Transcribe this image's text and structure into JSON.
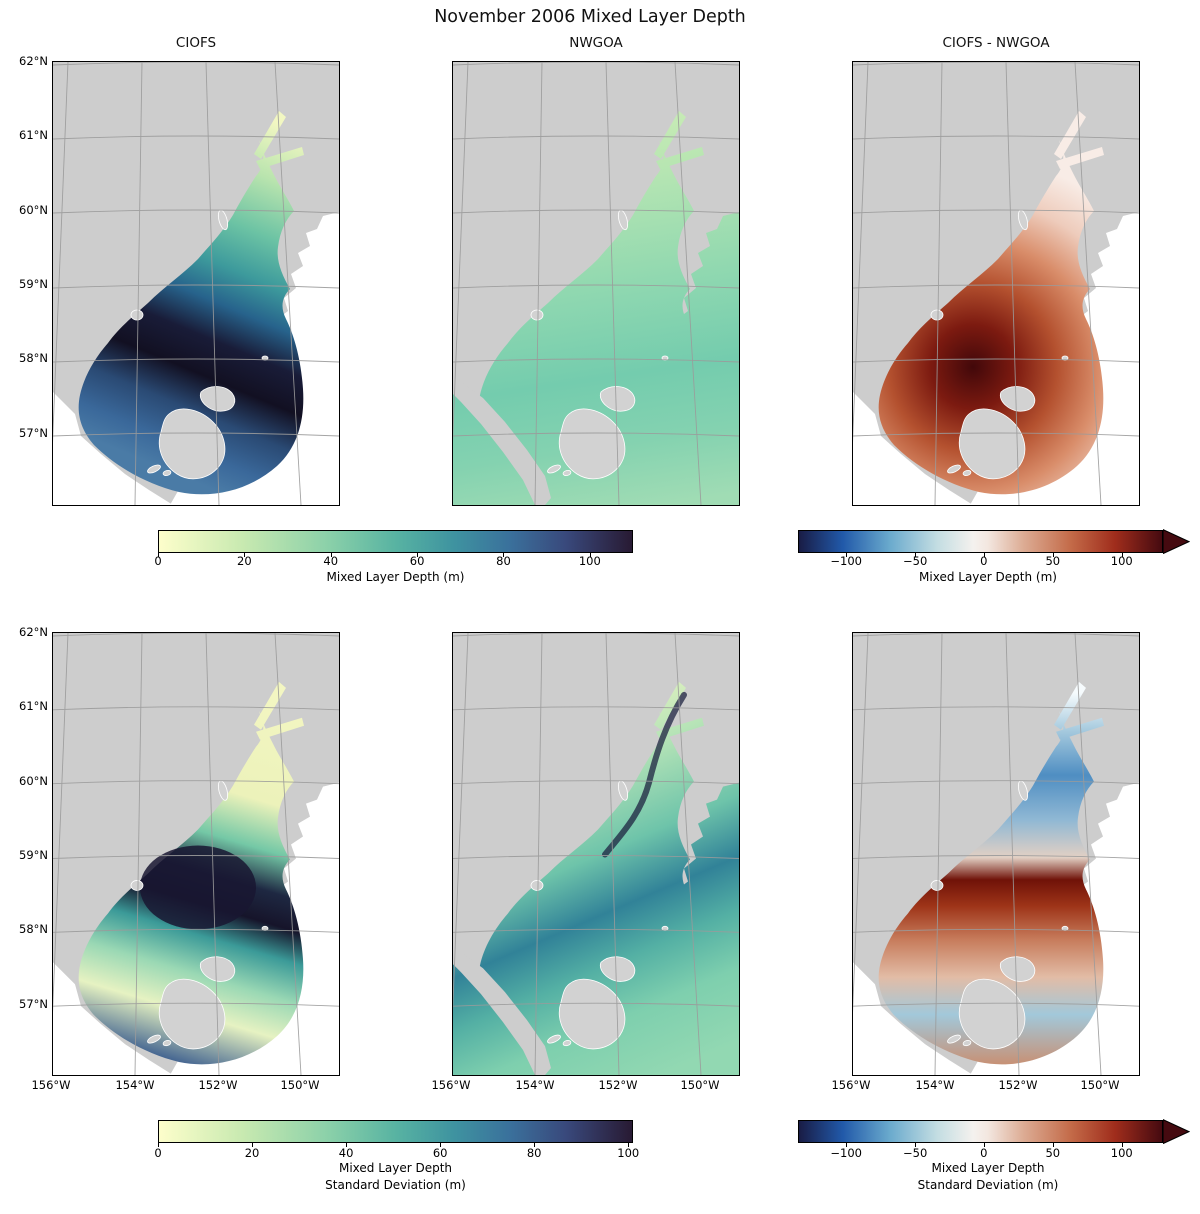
{
  "figure": {
    "title": "November 2006 Mixed Layer Depth",
    "background": "#ffffff"
  },
  "axes": {
    "lat_ticks": [
      "62°N",
      "61°N",
      "60°N",
      "59°N",
      "58°N",
      "57°N"
    ],
    "lon_ticks": [
      "156°W",
      "154°W",
      "152°W",
      "150°W"
    ]
  },
  "panels": [
    {
      "id": "ciofs-mld",
      "title": "CIOFS",
      "row": 1,
      "col": 1,
      "variable": "Mixed Layer Depth (m)",
      "palette": [
        [
          0,
          "#f2f7c2"
        ],
        [
          0.15,
          "#b9e4ae"
        ],
        [
          0.3,
          "#6cc3a4"
        ],
        [
          0.42,
          "#3d9a9c"
        ],
        [
          0.52,
          "#27638c"
        ],
        [
          0.62,
          "#191c38"
        ],
        [
          0.72,
          "#121022"
        ],
        [
          0.82,
          "#2a4a74"
        ],
        [
          0.92,
          "#3a689a"
        ],
        [
          1,
          "#4a7ba6"
        ]
      ]
    },
    {
      "id": "nwgoa-mld",
      "title": "NWGOA",
      "row": 1,
      "col": 2,
      "variable": "Mixed Layer Depth (m)",
      "palette": [
        [
          0,
          "#d9f0ba"
        ],
        [
          0.25,
          "#b8e6b2"
        ],
        [
          0.5,
          "#90d8b0"
        ],
        [
          0.7,
          "#74ccae"
        ],
        [
          0.85,
          "#84d2b0"
        ],
        [
          1,
          "#a0dcb4"
        ]
      ]
    },
    {
      "id": "diff-mld",
      "title": "CIOFS - NWGOA",
      "row": 1,
      "col": 3,
      "variable": "Mixed Layer Depth (m)",
      "palette": [
        [
          0,
          "#42080a"
        ],
        [
          0.2,
          "#7c1a10"
        ],
        [
          0.4,
          "#b4512f"
        ],
        [
          0.6,
          "#d98d6a"
        ],
        [
          0.8,
          "#eeccbc"
        ],
        [
          1,
          "#f8ece6"
        ]
      ]
    },
    {
      "id": "ciofs-mld-sd",
      "title": "",
      "row": 2,
      "col": 1,
      "variable": "Mixed Layer Depth Standard Deviation (m)",
      "palette": [
        [
          0,
          "#f3f6c2"
        ],
        [
          0.28,
          "#ecf2ba"
        ],
        [
          0.4,
          "#74c8a6"
        ],
        [
          0.5,
          "#1e2842"
        ],
        [
          0.58,
          "#16142a"
        ],
        [
          0.66,
          "#3b9a98"
        ],
        [
          0.76,
          "#9ad8b4"
        ],
        [
          0.86,
          "#e6f2c2"
        ],
        [
          1,
          "#3a5c8e"
        ]
      ]
    },
    {
      "id": "nwgoa-mld-sd",
      "title": "",
      "row": 2,
      "col": 2,
      "variable": "Mixed Layer Depth Standard Deviation (m)",
      "palette": [
        [
          0,
          "#e8f4c2"
        ],
        [
          0.2,
          "#b2e2b6"
        ],
        [
          0.4,
          "#6ec4aa"
        ],
        [
          0.55,
          "#318298"
        ],
        [
          0.68,
          "#54b0a4"
        ],
        [
          0.82,
          "#7ecfae"
        ],
        [
          1,
          "#92d8b2"
        ]
      ]
    },
    {
      "id": "diff-mld-sd",
      "title": "",
      "row": 2,
      "col": 3,
      "variable": "Mixed Layer Depth Standard Deviation (m)",
      "palette": [
        [
          0,
          "#f6fbfd"
        ],
        [
          0.1,
          "#a6cade"
        ],
        [
          0.22,
          "#4f8ec2"
        ],
        [
          0.34,
          "#90b8d4"
        ],
        [
          0.44,
          "#e2d0c4"
        ],
        [
          0.5,
          "#701208"
        ],
        [
          0.57,
          "#9e3418"
        ],
        [
          0.66,
          "#c77c5c"
        ],
        [
          0.76,
          "#e2bca6"
        ],
        [
          0.86,
          "#a2c8da"
        ],
        [
          1,
          "#c98e70"
        ]
      ]
    }
  ],
  "colorbars": [
    {
      "id": "mld",
      "label_lines": [
        "Mixed Layer Depth (m)"
      ],
      "ticks": [
        "0",
        "20",
        "40",
        "60",
        "80",
        "100"
      ],
      "range": [
        0,
        110
      ],
      "colormap": "deep",
      "extend": "none"
    },
    {
      "id": "mld-diff",
      "label_lines": [
        "Mixed Layer Depth (m)"
      ],
      "ticks": [
        "−100",
        "−50",
        "0",
        "50",
        "100"
      ],
      "range": [
        -135,
        130
      ],
      "colormap": "balance",
      "extend": "max"
    },
    {
      "id": "mld-sd",
      "label_lines": [
        "Mixed Layer Depth",
        "Standard Deviation (m)"
      ],
      "ticks": [
        "0",
        "20",
        "40",
        "60",
        "80",
        "100"
      ],
      "range": [
        0,
        101
      ],
      "colormap": "deep",
      "extend": "none"
    },
    {
      "id": "mld-sd-diff",
      "label_lines": [
        "Mixed Layer Depth",
        "Standard Deviation (m)"
      ],
      "ticks": [
        "−100",
        "−50",
        "0",
        "50",
        "100"
      ],
      "range": [
        -135,
        130
      ],
      "colormap": "balance",
      "extend": "max"
    }
  ],
  "colormaps": {
    "deep": [
      [
        0,
        "#fdfecb"
      ],
      [
        0.18,
        "#c7e9b0"
      ],
      [
        0.36,
        "#8ad0a9"
      ],
      [
        0.5,
        "#58b3a2"
      ],
      [
        0.62,
        "#3f94a0"
      ],
      [
        0.74,
        "#3a719c"
      ],
      [
        0.86,
        "#39497c"
      ],
      [
        1,
        "#281a33"
      ]
    ],
    "balance": [
      [
        0,
        "#191c45"
      ],
      [
        0.12,
        "#2159a9"
      ],
      [
        0.25,
        "#6aaacd"
      ],
      [
        0.38,
        "#c3dde2"
      ],
      [
        0.48,
        "#f4f1ee"
      ],
      [
        0.52,
        "#f3e7e0"
      ],
      [
        0.62,
        "#dcab93"
      ],
      [
        0.75,
        "#c36a48"
      ],
      [
        0.87,
        "#a02d1c"
      ],
      [
        1,
        "#450a10"
      ]
    ]
  },
  "map_colors": {
    "land": "#cdcdcd",
    "island": "#d2d2d2",
    "island_outline": "#ffffff",
    "no_data": "#ffffff",
    "gridline": "#9b9b9b",
    "panel_border": "#000000"
  },
  "chart_data": [
    {
      "panel": "CIOFS",
      "type": "heatmap",
      "variable": "Mixed Layer Depth (m)",
      "colormap": "deep",
      "range": [
        0,
        110
      ],
      "region_values_m": {
        "upper_cook_inlet_arms": "5-20",
        "mid_cook_inlet": "30-60",
        "lower_cook_inlet_kachemak": "90-110",
        "shelikof_strait": "100-110",
        "southwest_domain_arc": "50-80",
        "outside_model_domain": "no data (white)"
      }
    },
    {
      "panel": "NWGOA",
      "type": "heatmap",
      "variable": "Mixed Layer Depth (m)",
      "colormap": "deep",
      "range": [
        0,
        110
      ],
      "region_values_m": {
        "upper_cook_inlet": "5-15",
        "lower_cook_inlet": "15-30",
        "gulf_of_alaska_shelf": "20-40",
        "coastal_filaments": "35-50"
      }
    },
    {
      "panel": "CIOFS - NWGOA",
      "type": "heatmap",
      "variable": "Mixed Layer Depth difference (m)",
      "colormap": "balance",
      "range": [
        -130,
        130
      ],
      "region_values_m": {
        "upper_cook_inlet": "+5 to +20",
        "central_kachemak_shelikof": "+80 to +130",
        "outer_domain": "+20 to +60",
        "outside_ciofs_domain": "no data (white)"
      }
    },
    {
      "panel": "CIOFS (std)",
      "type": "heatmap",
      "variable": "Mixed Layer Depth Standard Deviation (m)",
      "colormap": "deep",
      "range": [
        0,
        101
      ],
      "region_values_m": {
        "upper_cook_inlet": "0-10",
        "central_kachemak_area": "85-100",
        "shelikof_strait": "40-100",
        "southeast_of_kodiak": "5-30",
        "domain_arc_edge": "20-60"
      }
    },
    {
      "panel": "NWGOA (std)",
      "type": "heatmap",
      "variable": "Mixed Layer Depth Standard Deviation (m)",
      "colormap": "deep",
      "range": [
        0,
        101
      ],
      "region_values_m": {
        "upper_cook_inlet": "5-15",
        "mid_channel_filaments": "60-90",
        "gulf_of_alaska_shelf": "20-45"
      }
    },
    {
      "panel": "CIOFS - NWGOA (std)",
      "type": "heatmap",
      "variable": "MLD Standard Deviation difference (m)",
      "colormap": "balance",
      "range": [
        -130,
        130
      ],
      "region_values_m": {
        "upper_cook_inlet": "-30 to -60",
        "central_kachemak_band": "+80 to +100",
        "lower_domain": "-30 to +40",
        "outside_ciofs_domain": "no data (white)"
      }
    }
  ]
}
